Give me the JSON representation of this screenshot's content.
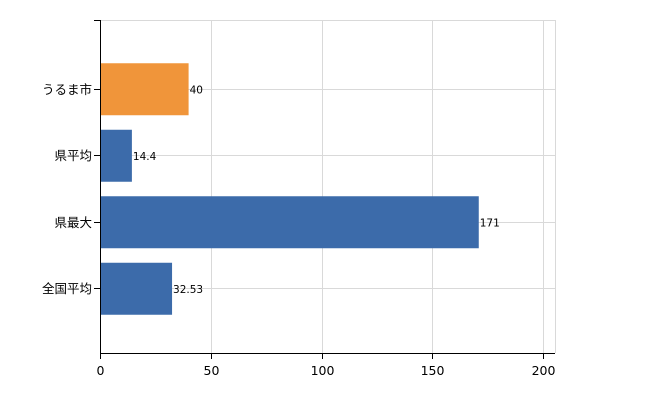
{
  "chart_data": {
    "type": "bar",
    "orientation": "horizontal",
    "categories": [
      "うるま市",
      "県平均",
      "県最大",
      "全国平均"
    ],
    "values": [
      40,
      14.4,
      171,
      32.53
    ],
    "value_labels": [
      "40",
      "14.4",
      "171",
      "32.53"
    ],
    "colors": [
      "#F0953A",
      "#3C6BAA",
      "#3C6BAA",
      "#3C6BAA"
    ],
    "xlim": [
      0,
      200
    ],
    "x_ticks": [
      0,
      50,
      100,
      150,
      200
    ],
    "x_tick_labels": [
      "0",
      "50",
      "100",
      "150",
      "200"
    ],
    "grid": true,
    "title": "",
    "xlabel": "",
    "ylabel": ""
  }
}
